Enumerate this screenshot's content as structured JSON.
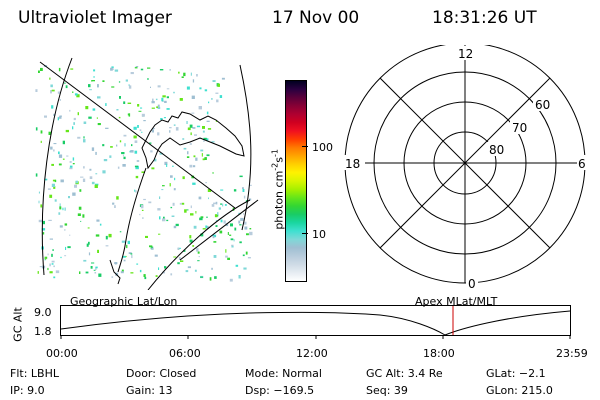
{
  "header": {
    "instrument": "Ultraviolet Imager",
    "date": "17 Nov 00",
    "time": "18:31:26 UT"
  },
  "colorbar": {
    "unit_label": "photon cm",
    "unit_sup1": "-2",
    "unit_mid": "s",
    "unit_sup2": "-1",
    "tick_100": "100",
    "tick_10": "10",
    "colors": [
      "#ffffff",
      "#e6ecf2",
      "#cfdbe6",
      "#b8ccdc",
      "#9fbfd2",
      "#7fd8d8",
      "#3fe0d0",
      "#19d6a0",
      "#19cc66",
      "#33d633",
      "#66e619",
      "#a6f000",
      "#d9f500",
      "#fff200",
      "#ffd000",
      "#ffa500",
      "#ff7a00",
      "#ff3d00",
      "#f01020",
      "#d00020",
      "#b00030",
      "#880035",
      "#5a003a",
      "#2a0040",
      "#000020"
    ]
  },
  "polar": {
    "mlt_labels": [
      "12",
      "18",
      "6",
      "0"
    ],
    "lat_labels": [
      "60",
      "70",
      "80"
    ]
  },
  "timeline": {
    "ylabel": "GC Alt",
    "ytick_top": "9.0",
    "ytick_bottom": "1.8",
    "left_label": "Geographic Lat/Lon",
    "right_label": "Apex MLat/MLT",
    "xticks": [
      "00:00",
      "06:00",
      "12:00",
      "18:00",
      "23:59"
    ],
    "marker_color": "#cc0000"
  },
  "info": {
    "filter": "Flt: LBHL",
    "ip": "IP:  9.0",
    "door": "Door: Closed",
    "gain": "Gain: 13",
    "mode": "Mode: Normal",
    "dsp": "Dsp: −169.5",
    "gcalt": "GC Alt: 3.4 Re",
    "seq": "Seq: 39",
    "glat": "GLat:  −2.1",
    "glon": "GLon: 215.0"
  }
}
